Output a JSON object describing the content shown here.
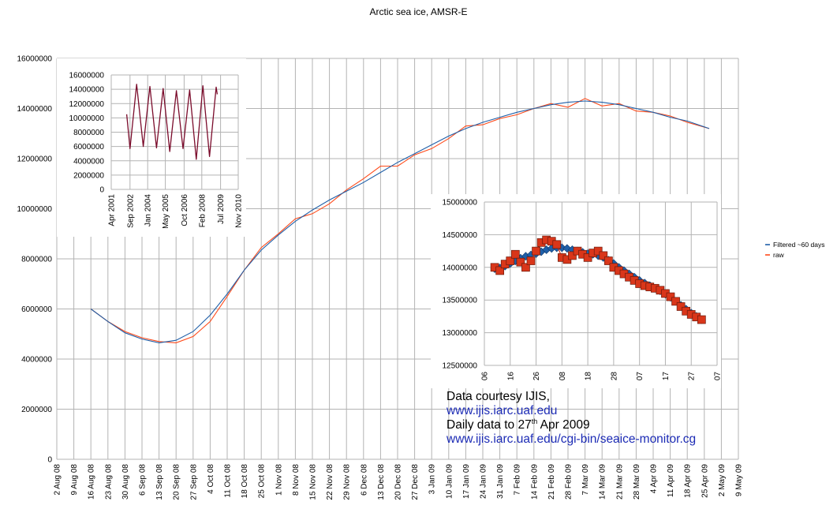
{
  "main_chart": {
    "title": "Arctic sea ice, AMSR-E",
    "type": "line",
    "y_ticks": [
      "0",
      "2000000",
      "4000000",
      "6000000",
      "8000000",
      "10000000",
      "12000000",
      "14000000",
      "16000000"
    ],
    "ylim": [
      0,
      16000000
    ],
    "x_ticks": [
      "2 Aug 08",
      "9 Aug 08",
      "16 Aug 08",
      "23 Aug 08",
      "30 Aug 08",
      "6 Sep 08",
      "13 Sep 08",
      "20 Sep 08",
      "27 Sep 08",
      "4 Oct 08",
      "11 Oct 08",
      "18 Oct 08",
      "25 Oct 08",
      "1 Nov 08",
      "8 Nov 08",
      "15 Nov 08",
      "22 Nov 08",
      "29 Nov 08",
      "6 Dec 08",
      "13 Dec 08",
      "20 Dec 08",
      "27 Dec 08",
      "3 Jan 09",
      "10 Jan 09",
      "17 Jan 09",
      "24 Jan 09",
      "31 Jan 09",
      "7 Feb 09",
      "14 Feb 09",
      "21 Feb 09",
      "28 Feb 09",
      "7 Mar 09",
      "14 Mar 09",
      "21 Mar 09",
      "28 Mar 09",
      "4 Apr 09",
      "11 Apr 09",
      "18 Apr 09",
      "25 Apr 09",
      "2 May 09",
      "9 May 09"
    ],
    "grid": true,
    "legend_position": "right",
    "legend": [
      {
        "name": "Filtered ~60 days",
        "color": "#1f5fa8"
      },
      {
        "name": "raw",
        "color": "#ff4a1a"
      }
    ]
  },
  "chart_data": [
    {
      "type": "line",
      "title": "Arctic sea ice, AMSR-E",
      "x_range": [
        "2 Aug 08",
        "9 May 09"
      ],
      "ylim": [
        0,
        16000000
      ],
      "series": [
        {
          "name": "Filtered ~60 days",
          "color": "#1f5fa8",
          "x": [
            "16 Aug 08",
            "23 Aug 08",
            "30 Aug 08",
            "6 Sep 08",
            "13 Sep 08",
            "20 Sep 08",
            "27 Sep 08",
            "4 Oct 08",
            "11 Oct 08",
            "18 Oct 08",
            "25 Oct 08",
            "1 Nov 08",
            "8 Nov 08",
            "15 Nov 08",
            "22 Nov 08",
            "29 Nov 08",
            "6 Dec 08",
            "13 Dec 08",
            "20 Dec 08",
            "27 Dec 08",
            "3 Jan 09",
            "10 Jan 09",
            "17 Jan 09",
            "24 Jan 09",
            "31 Jan 09",
            "7 Feb 09",
            "14 Feb 09",
            "21 Feb 09",
            "28 Feb 09",
            "7 Mar 09",
            "14 Mar 09",
            "21 Mar 09",
            "28 Mar 09",
            "4 Apr 09",
            "11 Apr 09",
            "18 Apr 09",
            "27 Apr 09"
          ],
          "y": [
            6000000,
            5500000,
            5050000,
            4800000,
            4650000,
            4750000,
            5100000,
            5750000,
            6600000,
            7550000,
            8350000,
            8950000,
            9500000,
            9950000,
            10350000,
            10700000,
            11050000,
            11450000,
            11850000,
            12200000,
            12550000,
            12900000,
            13200000,
            13450000,
            13650000,
            13850000,
            14000000,
            14150000,
            14250000,
            14300000,
            14250000,
            14150000,
            14000000,
            13850000,
            13650000,
            13500000,
            13200000
          ]
        },
        {
          "name": "raw",
          "color": "#ff4a1a",
          "x": [
            "16 Aug 08",
            "23 Aug 08",
            "30 Aug 08",
            "6 Sep 08",
            "13 Sep 08",
            "20 Sep 08",
            "27 Sep 08",
            "4 Oct 08",
            "11 Oct 08",
            "18 Oct 08",
            "25 Oct 08",
            "1 Nov 08",
            "8 Nov 08",
            "15 Nov 08",
            "22 Nov 08",
            "29 Nov 08",
            "6 Dec 08",
            "13 Dec 08",
            "20 Dec 08",
            "27 Dec 08",
            "3 Jan 09",
            "10 Jan 09",
            "17 Jan 09",
            "24 Jan 09",
            "31 Jan 09",
            "7 Feb 09",
            "14 Feb 09",
            "21 Feb 09",
            "28 Feb 09",
            "7 Mar 09",
            "14 Mar 09",
            "21 Mar 09",
            "28 Mar 09",
            "4 Apr 09",
            "11 Apr 09",
            "18 Apr 09",
            "27 Apr 09"
          ],
          "y": [
            6000000,
            5500000,
            5100000,
            4850000,
            4700000,
            4650000,
            4900000,
            5500000,
            6500000,
            7550000,
            8450000,
            9000000,
            9600000,
            9800000,
            10200000,
            10750000,
            11200000,
            11700000,
            11700000,
            12150000,
            12400000,
            12800000,
            13300000,
            13350000,
            13600000,
            13750000,
            14000000,
            14200000,
            14050000,
            14400000,
            14100000,
            14200000,
            13900000,
            13850000,
            13700000,
            13450000,
            13200000
          ]
        }
      ]
    },
    {
      "type": "line",
      "ylim": [
        0,
        16000000
      ],
      "y_ticks": [
        "0",
        "2000000",
        "4000000",
        "6000000",
        "8000000",
        "10000000",
        "12000000",
        "14000000",
        "16000000"
      ],
      "x_ticks": [
        "Apr 2001",
        "Sep 2002",
        "Jan 2004",
        "May 2005",
        "Oct 2006",
        "Feb 2008",
        "Jul 2009",
        "Nov 2010"
      ],
      "grid": true,
      "series": [
        {
          "color": "#7a0b2b",
          "x": [
            "Jun 2002",
            "Sep 2002",
            "Mar 2003",
            "Sep 2003",
            "Mar 2004",
            "Sep 2004",
            "Mar 2005",
            "Sep 2005",
            "Mar 2006",
            "Sep 2006",
            "Mar 2007",
            "Sep 2007",
            "Mar 2008",
            "Sep 2008",
            "Mar 2009",
            "Apr 2009"
          ],
          "y": [
            10500000,
            5700000,
            14700000,
            6000000,
            14400000,
            5800000,
            14100000,
            5300000,
            13800000,
            5700000,
            13900000,
            4200000,
            14500000,
            4600000,
            14300000,
            13300000
          ]
        }
      ]
    },
    {
      "type": "line",
      "ylim": [
        12500000,
        15000000
      ],
      "y_ticks": [
        "12500000",
        "13000000",
        "13500000",
        "14000000",
        "14500000",
        "15000000"
      ],
      "x_ticks": [
        "06",
        "16",
        "26",
        "08",
        "18",
        "28",
        "07",
        "17",
        "27",
        "07"
      ],
      "grid": true,
      "series": [
        {
          "name": "Filtered ~60 days",
          "color": "#1f5fa8",
          "x": [
            0,
            2,
            4,
            6,
            8,
            10,
            12,
            14,
            16,
            18,
            20,
            22,
            24,
            26,
            28,
            30,
            32,
            34,
            36,
            38,
            40,
            42,
            44,
            46,
            48,
            50,
            52,
            54,
            56,
            58,
            60,
            62,
            64,
            66,
            68,
            70,
            72,
            74,
            76,
            78,
            80
          ],
          "y": [
            13980000,
            13990000,
            14020000,
            14060000,
            14100000,
            14140000,
            14170000,
            14190000,
            14210000,
            14240000,
            14270000,
            14290000,
            14300000,
            14300000,
            14290000,
            14270000,
            14250000,
            14230000,
            14210000,
            14200000,
            14180000,
            14150000,
            14110000,
            14060000,
            14000000,
            13950000,
            13900000,
            13850000,
            13800000,
            13760000,
            13720000,
            13680000,
            13640000,
            13590000,
            13540000,
            13480000,
            13420000,
            13360000,
            13300000,
            13250000,
            13200000
          ]
        },
        {
          "name": "raw",
          "color": "#d9361a",
          "x": [
            0,
            2,
            4,
            6,
            8,
            10,
            12,
            14,
            16,
            18,
            20,
            22,
            24,
            26,
            28,
            30,
            32,
            34,
            36,
            38,
            40,
            42,
            44,
            46,
            48,
            50,
            52,
            54,
            56,
            58,
            60,
            62,
            64,
            66,
            68,
            70,
            72,
            74,
            76,
            78,
            80
          ],
          "y": [
            14000000,
            13950000,
            14050000,
            14100000,
            14200000,
            14080000,
            14000000,
            14100000,
            14250000,
            14380000,
            14420000,
            14400000,
            14350000,
            14150000,
            14120000,
            14180000,
            14250000,
            14200000,
            14150000,
            14220000,
            14250000,
            14180000,
            14100000,
            14000000,
            13950000,
            13900000,
            13850000,
            13800000,
            13750000,
            13720000,
            13700000,
            13680000,
            13650000,
            13600000,
            13550000,
            13480000,
            13400000,
            13330000,
            13280000,
            13240000,
            13200000
          ]
        }
      ]
    }
  ],
  "credits": {
    "line1": "Data courtesy IJIS,",
    "link1": "www.ijis.iarc.uaf.edu",
    "line3_pre": "Daily data to 27",
    "line3_sup": "th",
    "line3_post": " Apr 2009",
    "link2": "www.ijis.iarc.uaf.edu/cgi-bin/seaice-monitor.cg"
  }
}
